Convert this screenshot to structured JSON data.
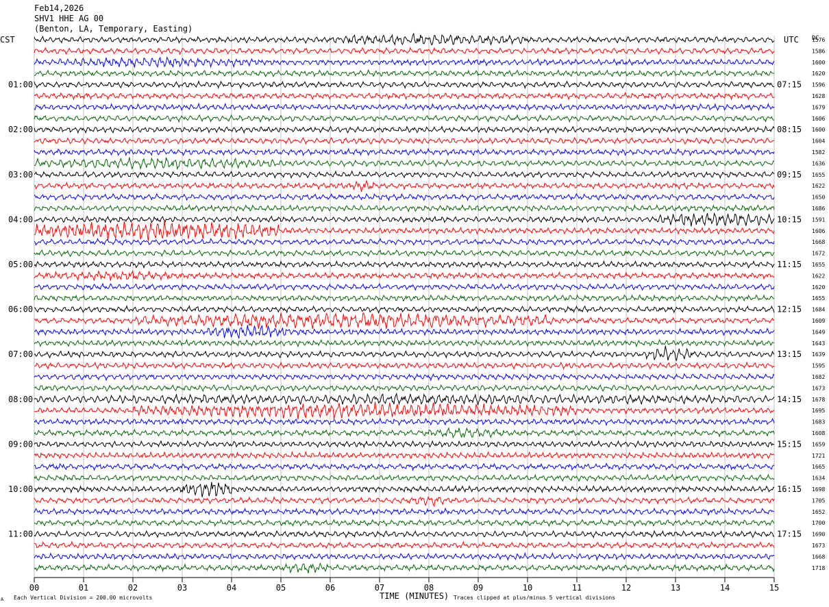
{
  "header": {
    "date": "Feb14,2026",
    "station": "SHV1 HHE AG 00",
    "location": "(Benton, LA, Temporary, Easting)"
  },
  "left_axis_title": "CST",
  "right_axis_title": "UTC",
  "counts_axis_title": "DC",
  "footer": {
    "scale_note": "Each Vertical Division =  200.00 microvolts",
    "clip_note": "Traces clipped at plus/minus 5 vertical divisions",
    "corner_mark": "A"
  },
  "chart_data": {
    "type": "helicorder",
    "xlabel": "TIME (MINUTES)",
    "xlim": [
      0,
      15
    ],
    "x_ticks": [
      "00",
      "01",
      "02",
      "03",
      "04",
      "05",
      "06",
      "07",
      "08",
      "09",
      "10",
      "11",
      "12",
      "13",
      "14",
      "15"
    ],
    "rows_per_hour": 4,
    "minutes_per_row": 15,
    "trace_colors": [
      "#000000",
      "#ff0000",
      "#0000ff",
      "#006600"
    ],
    "cst_hour_labels": [
      "01:00",
      "02:00",
      "03:00",
      "04:00",
      "05:00",
      "06:00",
      "07:00",
      "08:00",
      "09:00",
      "10:00",
      "11:00"
    ],
    "utc_hour_labels": [
      "07:15",
      "08:15",
      "09:15",
      "10:15",
      "11:15",
      "12:15",
      "13:15",
      "14:15",
      "15:15",
      "16:15",
      "17:15"
    ],
    "row_dc_offsets": [
      "1576",
      "1586",
      "1600",
      "1620",
      "1596",
      "1628",
      "1679",
      "1606",
      "1600",
      "1604",
      "1582",
      "1636",
      "1655",
      "1622",
      "1650",
      "1686",
      "1591",
      "1606",
      "1668",
      "1672",
      "1655",
      "1622",
      "1620",
      "1655",
      "1684",
      "1609",
      "1649",
      "1643",
      "1639",
      "1595",
      "1682",
      "1673",
      "1678",
      "1695",
      "1683",
      "1608",
      "1659",
      "1721",
      "1665",
      "1634",
      "1698",
      "1705",
      "1652",
      "1700",
      "1690",
      "1673",
      "1668",
      "1718"
    ],
    "events": [
      {
        "row": 0,
        "start_min": 6.0,
        "end_min": 10.0,
        "amplitude": 1.6
      },
      {
        "row": 2,
        "start_min": 0.5,
        "end_min": 4.5,
        "amplitude": 1.5
      },
      {
        "row": 11,
        "start_min": 0.0,
        "end_min": 5.0,
        "amplitude": 1.5
      },
      {
        "row": 13,
        "start_min": 6.4,
        "end_min": 6.9,
        "amplitude": 1.6
      },
      {
        "row": 16,
        "start_min": 12.6,
        "end_min": 15.0,
        "amplitude": 2.2
      },
      {
        "row": 17,
        "start_min": 0.0,
        "end_min": 5.0,
        "amplitude": 3.0
      },
      {
        "row": 21,
        "start_min": 0.2,
        "end_min": 3.0,
        "amplitude": 1.2
      },
      {
        "row": 25,
        "start_min": 2.0,
        "end_min": 10.5,
        "amplitude": 2.4
      },
      {
        "row": 26,
        "start_min": 3.5,
        "end_min": 5.2,
        "amplitude": 2.0
      },
      {
        "row": 28,
        "start_min": 12.4,
        "end_min": 13.4,
        "amplitude": 2.2
      },
      {
        "row": 32,
        "start_min": 0.0,
        "end_min": 15.0,
        "amplitude": 1.3
      },
      {
        "row": 33,
        "start_min": 2.0,
        "end_min": 11.0,
        "amplitude": 2.3
      },
      {
        "row": 35,
        "start_min": 8.0,
        "end_min": 9.5,
        "amplitude": 1.4
      },
      {
        "row": 40,
        "start_min": 3.0,
        "end_min": 4.0,
        "amplitude": 2.8
      },
      {
        "row": 41,
        "start_min": 7.7,
        "end_min": 8.3,
        "amplitude": 1.8
      },
      {
        "row": 47,
        "start_min": 5.0,
        "end_min": 6.0,
        "amplitude": 1.5
      }
    ]
  }
}
